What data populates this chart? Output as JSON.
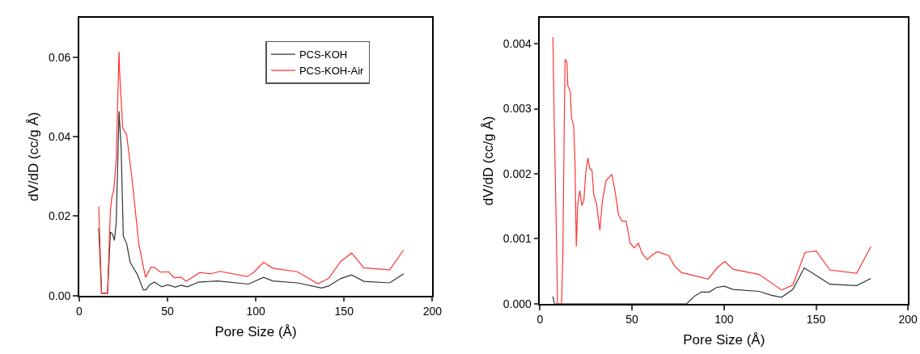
{
  "chart_data": [
    {
      "type": "line",
      "xlabel": "Pore Size (Å)",
      "ylabel": "dV/dD (cc/g Å)",
      "xlim": [
        0,
        200
      ],
      "ylim": [
        0,
        0.07
      ],
      "xticks": [
        0,
        50,
        100,
        150,
        200
      ],
      "yticks": [
        {
          "value": 0,
          "label": "0.00"
        },
        {
          "value": 0.02,
          "label": "0.02"
        },
        {
          "value": 0.04,
          "label": "0.04"
        },
        {
          "value": 0.06,
          "label": "0.06"
        }
      ],
      "legend": "top right",
      "marker": "none",
      "line_style": "solid",
      "series": [
        {
          "name": "PCS-KOH",
          "color": "#333333",
          "x": [
            11.1,
            12.7,
            16.1,
            17.7,
            18.9,
            20.0,
            21.0,
            22.6,
            23.8,
            25.0,
            26.9,
            28.9,
            33.0,
            36.4,
            37.9,
            39.9,
            42.5,
            46.8,
            50.2,
            54.5,
            57.6,
            61.4,
            67.5,
            78.3,
            95.9,
            104.4,
            109.7,
            123.6,
            137.2,
            141.2,
            148.1,
            154.3,
            161.2,
            175.8,
            183.7
          ],
          "values": [
            0.017,
            0.0006,
            0.0006,
            0.016,
            0.0155,
            0.0139,
            0.0184,
            0.0464,
            0.0371,
            0.015,
            0.0131,
            0.0084,
            0.0053,
            0.0014,
            0.0015,
            0.0027,
            0.0034,
            0.0022,
            0.0027,
            0.0021,
            0.0026,
            0.0022,
            0.0034,
            0.0037,
            0.0029,
            0.0046,
            0.0037,
            0.0032,
            0.0019,
            0.0024,
            0.0043,
            0.0052,
            0.0036,
            0.0032,
            0.0055
          ]
        },
        {
          "name": "PCS-KOH-Air",
          "color": "#ff3333",
          "x": [
            11.1,
            12.7,
            16.1,
            17.7,
            18.7,
            19.6,
            21.0,
            22.6,
            23.0,
            24.7,
            26.9,
            30.1,
            33.8,
            37.6,
            40.7,
            43.0,
            46.0,
            50.7,
            53.7,
            57.6,
            60.6,
            68.3,
            74.4,
            79.8,
            95.2,
            99.0,
            104.4,
            109.7,
            123.6,
            135.1,
            141.2,
            148.1,
            154.3,
            161.2,
            175.8,
            183.7
          ],
          "values": [
            0.0224,
            0.0006,
            0.0006,
            0.0215,
            0.0252,
            0.0264,
            0.0343,
            0.0615,
            0.0557,
            0.0422,
            0.0405,
            0.0288,
            0.0129,
            0.0046,
            0.0072,
            0.007,
            0.0059,
            0.006,
            0.0045,
            0.0046,
            0.0036,
            0.0058,
            0.0055,
            0.0061,
            0.0048,
            0.0059,
            0.0084,
            0.0069,
            0.006,
            0.003,
            0.0043,
            0.0086,
            0.0107,
            0.007,
            0.0065,
            0.0115
          ]
        }
      ]
    },
    {
      "type": "line",
      "xlabel": "Pore Size (Å)",
      "ylabel": "dV/dD (cc/g Å)",
      "xlim": [
        0,
        200
      ],
      "ylim": [
        0,
        0.0044
      ],
      "xticks": [
        0,
        50,
        100,
        150,
        200
      ],
      "yticks": [
        {
          "value": 0,
          "label": "0.000"
        },
        {
          "value": 0.001,
          "label": "0.001"
        },
        {
          "value": 0.002,
          "label": "0.002"
        },
        {
          "value": 0.003,
          "label": "0.003"
        },
        {
          "value": 0.004,
          "label": "0.004"
        }
      ],
      "legend": false,
      "marker": "none",
      "line_style": "solid",
      "series": [
        {
          "color": "#333333",
          "x": [
            7.0,
            7.8,
            79.7,
            84.1,
            87.7,
            92.1,
            95.8,
            100.1,
            104.9,
            119.1,
            125.7,
            131.3,
            137.4,
            143.6,
            149.9,
            157.5,
            172.1,
            179.8
          ],
          "values": [
            0.00011,
            0.0,
            0.0,
            0.00012,
            0.00018,
            0.00018,
            0.00025,
            0.00027,
            0.00022,
            0.00019,
            0.00013,
            0.0001,
            0.00022,
            0.00055,
            0.00044,
            0.0003,
            0.00028,
            0.00039
          ]
        },
        {
          "color": "#ff3333",
          "x": [
            7.0,
            7.8,
            8.8,
            9.5,
            11.7,
            12.4,
            13.2,
            13.6,
            14.6,
            15.1,
            16.4,
            17.1,
            18.3,
            19.0,
            19.7,
            20.5,
            21.6,
            22.7,
            23.8,
            24.9,
            26.0,
            27.0,
            28.2,
            29.2,
            30.7,
            32.5,
            33.9,
            35.8,
            39.0,
            40.9,
            42.7,
            44.6,
            46.8,
            49.0,
            51.2,
            53.4,
            55.6,
            58.2,
            61.4,
            63.9,
            69.9,
            73.1,
            76.8,
            91.4,
            96.5,
            100.4,
            104.9,
            119.1,
            131.3,
            137.4,
            144.0,
            150.1,
            157.5,
            172.1,
            179.8
          ],
          "values": [
            0.0041,
            0.00265,
            0.00121,
            0.0,
            0.0,
            0.00076,
            0.00286,
            0.00376,
            0.00372,
            0.00335,
            0.00327,
            0.00286,
            0.00273,
            0.00216,
            0.00088,
            0.00154,
            0.00174,
            0.00151,
            0.00158,
            0.00204,
            0.00224,
            0.00208,
            0.00206,
            0.00167,
            0.00154,
            0.00113,
            0.00158,
            0.00189,
            0.00199,
            0.00171,
            0.00136,
            0.00127,
            0.00127,
            0.00093,
            0.00086,
            0.00093,
            0.00077,
            0.00068,
            0.00076,
            0.0008,
            0.00074,
            0.00058,
            0.00048,
            0.00038,
            0.00056,
            0.00065,
            0.00053,
            0.00045,
            0.00021,
            0.00029,
            0.00079,
            0.00081,
            0.00052,
            0.00047,
            0.00088
          ]
        }
      ]
    }
  ]
}
